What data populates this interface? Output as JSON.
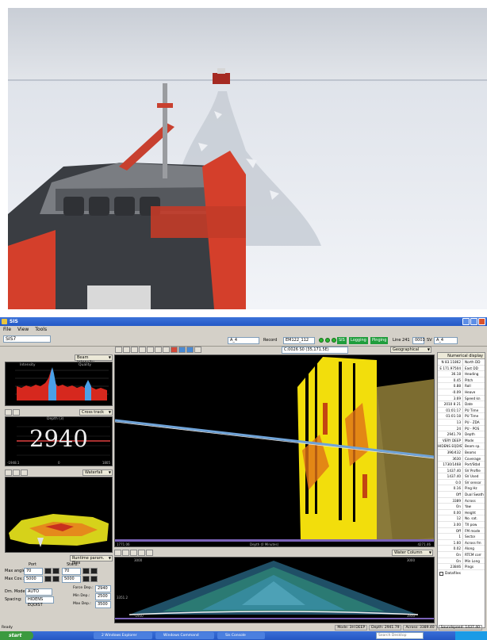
{
  "window": {
    "title": "SIS"
  },
  "menu": [
    "File",
    "View",
    "Tools"
  ],
  "toolbar": {
    "left_select": "SIS7",
    "ship_select": "A_4",
    "record_label": "Record",
    "file_select": "EM122_112",
    "coordinates": "C:0026 S0 (35,171.5E)",
    "btn_sis": "SIS",
    "btn_logging": "Logging",
    "btn_pinging": "Pinging",
    "line_label": "Line 241",
    "num1": "0003",
    "sv_label": "SV",
    "sv_select": "A_4",
    "geo_select": "Geographical"
  },
  "left": {
    "beam_dropdown": "Beam intensity",
    "intensity_label": "Intensity",
    "quality_label": "Quality",
    "cross_dropdown": "Cross track",
    "depth_title": "Depth (3)",
    "depth_value": "2940",
    "depth_left": "-1948.1",
    "depth_mid": "0",
    "depth_right": "1805",
    "waterfall_dropdown": "Waterfall",
    "runtime_dropdown": "Runtime param. files",
    "port_label": "Port",
    "stbd_label": "Starb.",
    "max_angle_label": "Max angle:",
    "max_angle_port": "70",
    "max_angle_stbd": "70",
    "max_cov_label": "Max Cov.:",
    "max_cov_port": "5000",
    "max_cov_stbd": "5000",
    "dm_mode_label": "Dm. Mode:",
    "dm_mode_value": "AUTO",
    "spacing_label": "Spacing:",
    "spacing_value": "HIDENS EQDIST",
    "force_depth_label": "Force Dep.:",
    "force_depth_value": "2940",
    "min_depth_label": "Min Dep.:",
    "min_depth_value": "2500",
    "max_depth_label": "Max Dep.:",
    "max_depth_value": "3500"
  },
  "main": {
    "scale_left": "1771.06",
    "scale_mid": "Depth (0 Minutes)",
    "scale_right": "4271.46",
    "lower_dropdown": "Water Column",
    "lower_left": "3000",
    "lower_right": "3000",
    "lower_ymin": "3351.2",
    "lower_xmin": "-1950",
    "lower_xmax": "1950"
  },
  "numerical": {
    "title": "Numerical display",
    "rows": [
      [
        "N 83.11862",
        "North DD"
      ],
      [
        "E 171.97504",
        "East DD"
      ],
      [
        "36.18",
        "Heading"
      ],
      [
        "0.45",
        "Pitch"
      ],
      [
        "0.88",
        "Roll"
      ],
      [
        "-0.09",
        "Heave"
      ],
      [
        "3.69",
        "Speed kn"
      ],
      [
        "2010 8 21",
        "Date"
      ],
      [
        "01:01:17",
        "PU Time"
      ],
      [
        "01:01:18",
        "PU Time"
      ],
      [
        "13",
        "PU - ZDA"
      ],
      [
        "24",
        "PU - POS"
      ],
      [
        "2941.79",
        "Depth"
      ],
      [
        "VERY DEEP",
        "Mode"
      ],
      [
        "HIDENS EQDIST",
        "Beam sp."
      ],
      [
        "396/432",
        "Beams"
      ],
      [
        "3630",
        "Coverage"
      ],
      [
        "1730/1468",
        "Port/Stbd"
      ],
      [
        "1437.40",
        "SV Profile"
      ],
      [
        "1437.40",
        "SV Used"
      ],
      [
        "0.0",
        "SV sensor"
      ],
      [
        "0.16",
        "Ping Hz"
      ],
      [
        "Off",
        "Dual Swath"
      ],
      [
        "3389",
        "Across"
      ],
      [
        "On",
        "Yaw"
      ],
      [
        "0.00",
        "Height"
      ],
      [
        "12",
        "No. sat."
      ],
      [
        "3.00",
        "TX pow"
      ],
      [
        "Off",
        "FM mode"
      ],
      [
        "1",
        "Sector"
      ],
      [
        "1.60",
        "Across fm"
      ],
      [
        "0.02",
        "Along"
      ],
      [
        "On",
        "RTCM corr"
      ],
      [
        "On",
        "Min Long"
      ],
      [
        "23846",
        "Pings"
      ]
    ],
    "datafiles_label": "Datafiles"
  },
  "status": {
    "left": "Ready",
    "mode": "Mode: 3H DEEP",
    "depth": "Depth: 2941.79",
    "across": "Across: 3389.40",
    "soundspeed": "Soundspeed: 1437.40"
  },
  "taskbar": {
    "start": "start",
    "tasks": [
      "2 Windows Explorer",
      "Windows Command",
      "Sis Console"
    ],
    "search": "Search Desktop"
  },
  "colors": {
    "accent": "#2458c6",
    "logging_green": "#1f9d3c",
    "swath_yellow": "#f5e20a",
    "track_blue": "#6fa3d8"
  }
}
